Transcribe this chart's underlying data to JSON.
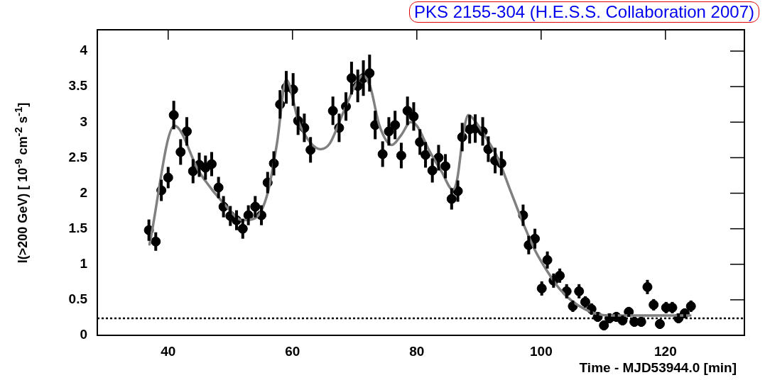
{
  "chart_data": {
    "type": "scatter",
    "title": "PKS 2155-304 (H.E.S.S. Collaboration 2007)",
    "xlabel": "Time - MJD53944.0 [min]",
    "ylabel": "I(>200 GeV) [ 10$^{-9}$ cm$^{-2}$ s$^{-1}$]",
    "xlim": [
      28.6,
      132.7
    ],
    "ylim": [
      0,
      4.3
    ],
    "xticks": [
      40,
      60,
      80,
      100,
      120
    ],
    "yticks": [
      0,
      0.5,
      1,
      1.5,
      2,
      2.5,
      3,
      3.5,
      4
    ],
    "grid": false,
    "legend": false,
    "ref_lines": [
      {
        "axis": "y",
        "value": 0.24,
        "color": "#000000",
        "line_style": "dotted"
      }
    ],
    "series": [
      {
        "color": "#000000",
        "marker": "circle",
        "x": [
          36.9,
          38.0,
          38.9,
          40.0,
          40.9,
          42.0,
          43.0,
          44.0,
          45.0,
          46.0,
          47.0,
          48.1,
          48.9,
          50.0,
          51.0,
          52.0,
          52.9,
          54.0,
          55.0,
          56.0,
          57.0,
          58.0,
          59.0,
          60.1,
          60.9,
          61.9,
          62.9,
          66.5,
          67.5,
          68.6,
          69.5,
          70.5,
          71.4,
          72.4,
          73.3,
          74.5,
          75.5,
          76.5,
          77.5,
          78.5,
          79.5,
          80.5,
          81.4,
          82.5,
          83.5,
          84.6,
          85.6,
          86.6,
          87.3,
          88.5,
          89.4,
          90.6,
          91.5,
          92.6,
          93.6,
          97.1,
          98.0,
          99.0,
          100.1,
          101.0,
          102.0,
          103.0,
          104.1,
          105.1,
          106.1,
          107.1,
          108.1,
          109.1,
          110.1,
          111.0,
          112.1,
          113.1,
          114.1,
          115.0,
          116.1,
          117.1,
          118.1,
          119.1,
          120.1,
          121.1,
          122.1,
          123.1,
          124.1
        ],
        "values": [
          1.48,
          1.32,
          2.04,
          2.22,
          3.1,
          2.58,
          2.87,
          2.31,
          2.4,
          2.36,
          2.41,
          2.08,
          1.81,
          1.68,
          1.62,
          1.5,
          1.69,
          1.81,
          1.69,
          2.15,
          2.42,
          3.25,
          3.49,
          3.46,
          3.02,
          2.92,
          2.61,
          3.16,
          2.92,
          3.22,
          3.62,
          3.51,
          3.62,
          3.69,
          2.96,
          2.55,
          2.87,
          2.96,
          2.53,
          3.16,
          3.08,
          2.72,
          2.54,
          2.32,
          2.5,
          2.38,
          1.92,
          2.03,
          2.79,
          2.9,
          2.91,
          2.87,
          2.62,
          2.46,
          2.42,
          1.69,
          1.27,
          1.36,
          0.66,
          1.06,
          0.77,
          0.84,
          0.62,
          0.41,
          0.62,
          0.47,
          0.37,
          0.26,
          0.14,
          0.24,
          0.26,
          0.21,
          0.33,
          0.19,
          0.19,
          0.68,
          0.43,
          0.16,
          0.39,
          0.39,
          0.24,
          0.31,
          0.41
        ],
        "errors": [
          0.15,
          0.13,
          0.15,
          0.15,
          0.2,
          0.18,
          0.2,
          0.17,
          0.17,
          0.17,
          0.17,
          0.15,
          0.15,
          0.14,
          0.14,
          0.14,
          0.14,
          0.15,
          0.14,
          0.15,
          0.17,
          0.2,
          0.23,
          0.23,
          0.2,
          0.2,
          0.18,
          0.2,
          0.2,
          0.2,
          0.23,
          0.23,
          0.25,
          0.26,
          0.2,
          0.18,
          0.2,
          0.2,
          0.18,
          0.2,
          0.2,
          0.18,
          0.18,
          0.17,
          0.18,
          0.17,
          0.15,
          0.15,
          0.2,
          0.2,
          0.2,
          0.2,
          0.18,
          0.18,
          0.17,
          0.15,
          0.13,
          0.14,
          0.1,
          0.12,
          0.1,
          0.1,
          0.1,
          0.08,
          0.1,
          0.08,
          0.08,
          0.07,
          0.07,
          0.07,
          0.07,
          0.07,
          0.07,
          0.07,
          0.07,
          0.1,
          0.08,
          0.07,
          0.08,
          0.08,
          0.07,
          0.07,
          0.08
        ]
      },
      {
        "type": "line",
        "color": "#808080",
        "marker": "none",
        "x": [
          37,
          41,
          45,
          49,
          52,
          54,
          56,
          57.5,
          59,
          61,
          63,
          64.5,
          66,
          68,
          70,
          71.3,
          72.5,
          74,
          76,
          77.5,
          79,
          80,
          82,
          84,
          85.8,
          86.5,
          87.5,
          88.3,
          89.5,
          91,
          93,
          95,
          97,
          99,
          101,
          103,
          105,
          107,
          109,
          111,
          115,
          124
        ],
        "values": [
          1.28,
          2.95,
          2.3,
          1.85,
          1.62,
          1.65,
          2.0,
          2.7,
          3.6,
          3.0,
          2.7,
          2.62,
          2.7,
          3.1,
          3.5,
          3.66,
          3.5,
          2.95,
          2.68,
          2.82,
          3.0,
          2.95,
          2.6,
          2.3,
          2.05,
          2.2,
          2.85,
          3.1,
          3.0,
          2.8,
          2.5,
          2.05,
          1.6,
          1.2,
          0.9,
          0.65,
          0.48,
          0.37,
          0.3,
          0.28,
          0.28,
          0.28
        ]
      }
    ]
  }
}
